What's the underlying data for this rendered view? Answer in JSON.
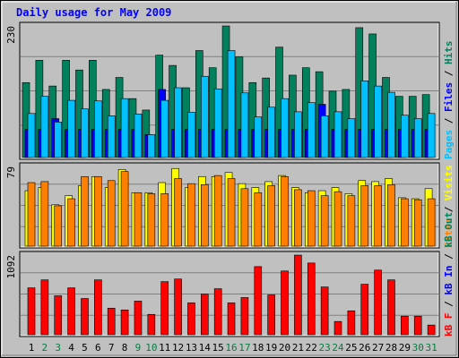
{
  "title": "Daily usage for May 2009",
  "categories": [
    "1",
    "2",
    "3",
    "4",
    "5",
    "6",
    "7",
    "8",
    "9",
    "10",
    "11",
    "12",
    "13",
    "14",
    "15",
    "16",
    "17",
    "18",
    "19",
    "20",
    "21",
    "22",
    "23",
    "24",
    "25",
    "26",
    "27",
    "28",
    "29",
    "30",
    "31"
  ],
  "category_colors": [
    "#000000",
    "#008040",
    "#008040",
    "#000000",
    "#000000",
    "#000000",
    "#000000",
    "#000000",
    "#008040",
    "#008040",
    "#000000",
    "#000000",
    "#000000",
    "#000000",
    "#000000",
    "#008040",
    "#008040",
    "#000000",
    "#000000",
    "#000000",
    "#000000",
    "#000000",
    "#008040",
    "#008040",
    "#000000",
    "#000000",
    "#000000",
    "#000000",
    "#000000",
    "#008040",
    "#008040"
  ],
  "legend_separator": "/",
  "chart_data": [
    {
      "type": "bar",
      "ylim": [
        0,
        230
      ],
      "yticks": [
        230
      ],
      "grid": true,
      "series": [
        {
          "name": "Hits",
          "color": "#00805c",
          "values": [
            131,
            170,
            125,
            170,
            153,
            170,
            119,
            140,
            103,
            83,
            179,
            161,
            122,
            187,
            157,
            230,
            176,
            131,
            139,
            193,
            144,
            157,
            150,
            116,
            119,
            227,
            216,
            140,
            107,
            107,
            110
          ]
        },
        {
          "name": "Files",
          "color": "#0000ff",
          "values": [
            49,
            49,
            68,
            49,
            49,
            49,
            49,
            49,
            49,
            40,
            119,
            49,
            49,
            49,
            49,
            49,
            49,
            49,
            49,
            49,
            49,
            49,
            93,
            49,
            49,
            49,
            49,
            49,
            49,
            49,
            49
          ]
        },
        {
          "name": "Pages",
          "color": "#00c0ff",
          "values": [
            77,
            107,
            62,
            100,
            85,
            99,
            73,
            103,
            76,
            40,
            100,
            122,
            79,
            142,
            120,
            187,
            113,
            71,
            88,
            103,
            80,
            96,
            73,
            80,
            68,
            134,
            125,
            114,
            74,
            68,
            77
          ]
        }
      ]
    },
    {
      "type": "bar",
      "ylim": [
        0,
        79
      ],
      "yticks": [
        79
      ],
      "grid": true,
      "series": [
        {
          "name": "Visits",
          "color": "#ffff00",
          "values": [
            55,
            58,
            41,
            50,
            60,
            69,
            58,
            76,
            53,
            53,
            63,
            77,
            58,
            69,
            69,
            73,
            62,
            58,
            64,
            70,
            58,
            53,
            55,
            58,
            52,
            65,
            64,
            67,
            48,
            47,
            57
          ]
        },
        {
          "name": "Sites",
          "color": "#ff8000",
          "values": [
            63,
            64,
            40,
            47,
            69,
            69,
            65,
            74,
            53,
            52,
            52,
            67,
            62,
            61,
            70,
            67,
            57,
            53,
            60,
            69,
            56,
            55,
            50,
            54,
            50,
            60,
            60,
            61,
            47,
            46,
            47
          ]
        }
      ]
    },
    {
      "type": "bar",
      "ylim": [
        0,
        1092
      ],
      "yticks": [
        1092
      ],
      "grid": true,
      "series": [
        {
          "name": "kB Out",
          "color": "#00805c",
          "values": [
            0,
            0,
            0,
            0,
            0,
            0,
            0,
            0,
            0,
            0,
            0,
            0,
            0,
            0,
            0,
            0,
            0,
            0,
            0,
            0,
            0,
            0,
            0,
            0,
            0,
            0,
            0,
            0,
            0,
            0,
            0
          ]
        },
        {
          "name": "kB In",
          "color": "#0000ff",
          "values": [
            0,
            0,
            0,
            0,
            0,
            0,
            0,
            0,
            0,
            0,
            0,
            0,
            0,
            0,
            0,
            0,
            0,
            0,
            0,
            0,
            0,
            0,
            0,
            0,
            0,
            0,
            0,
            0,
            0,
            0,
            0
          ]
        },
        {
          "name": "kB F",
          "color": "#ff0000",
          "values": [
            643,
            752,
            534,
            643,
            497,
            752,
            364,
            340,
            461,
            279,
            728,
            764,
            437,
            558,
            631,
            437,
            510,
            934,
            546,
            874,
            1092,
            983,
            655,
            182,
            328,
            692,
            886,
            752,
            255,
            255,
            133
          ]
        }
      ]
    }
  ]
}
